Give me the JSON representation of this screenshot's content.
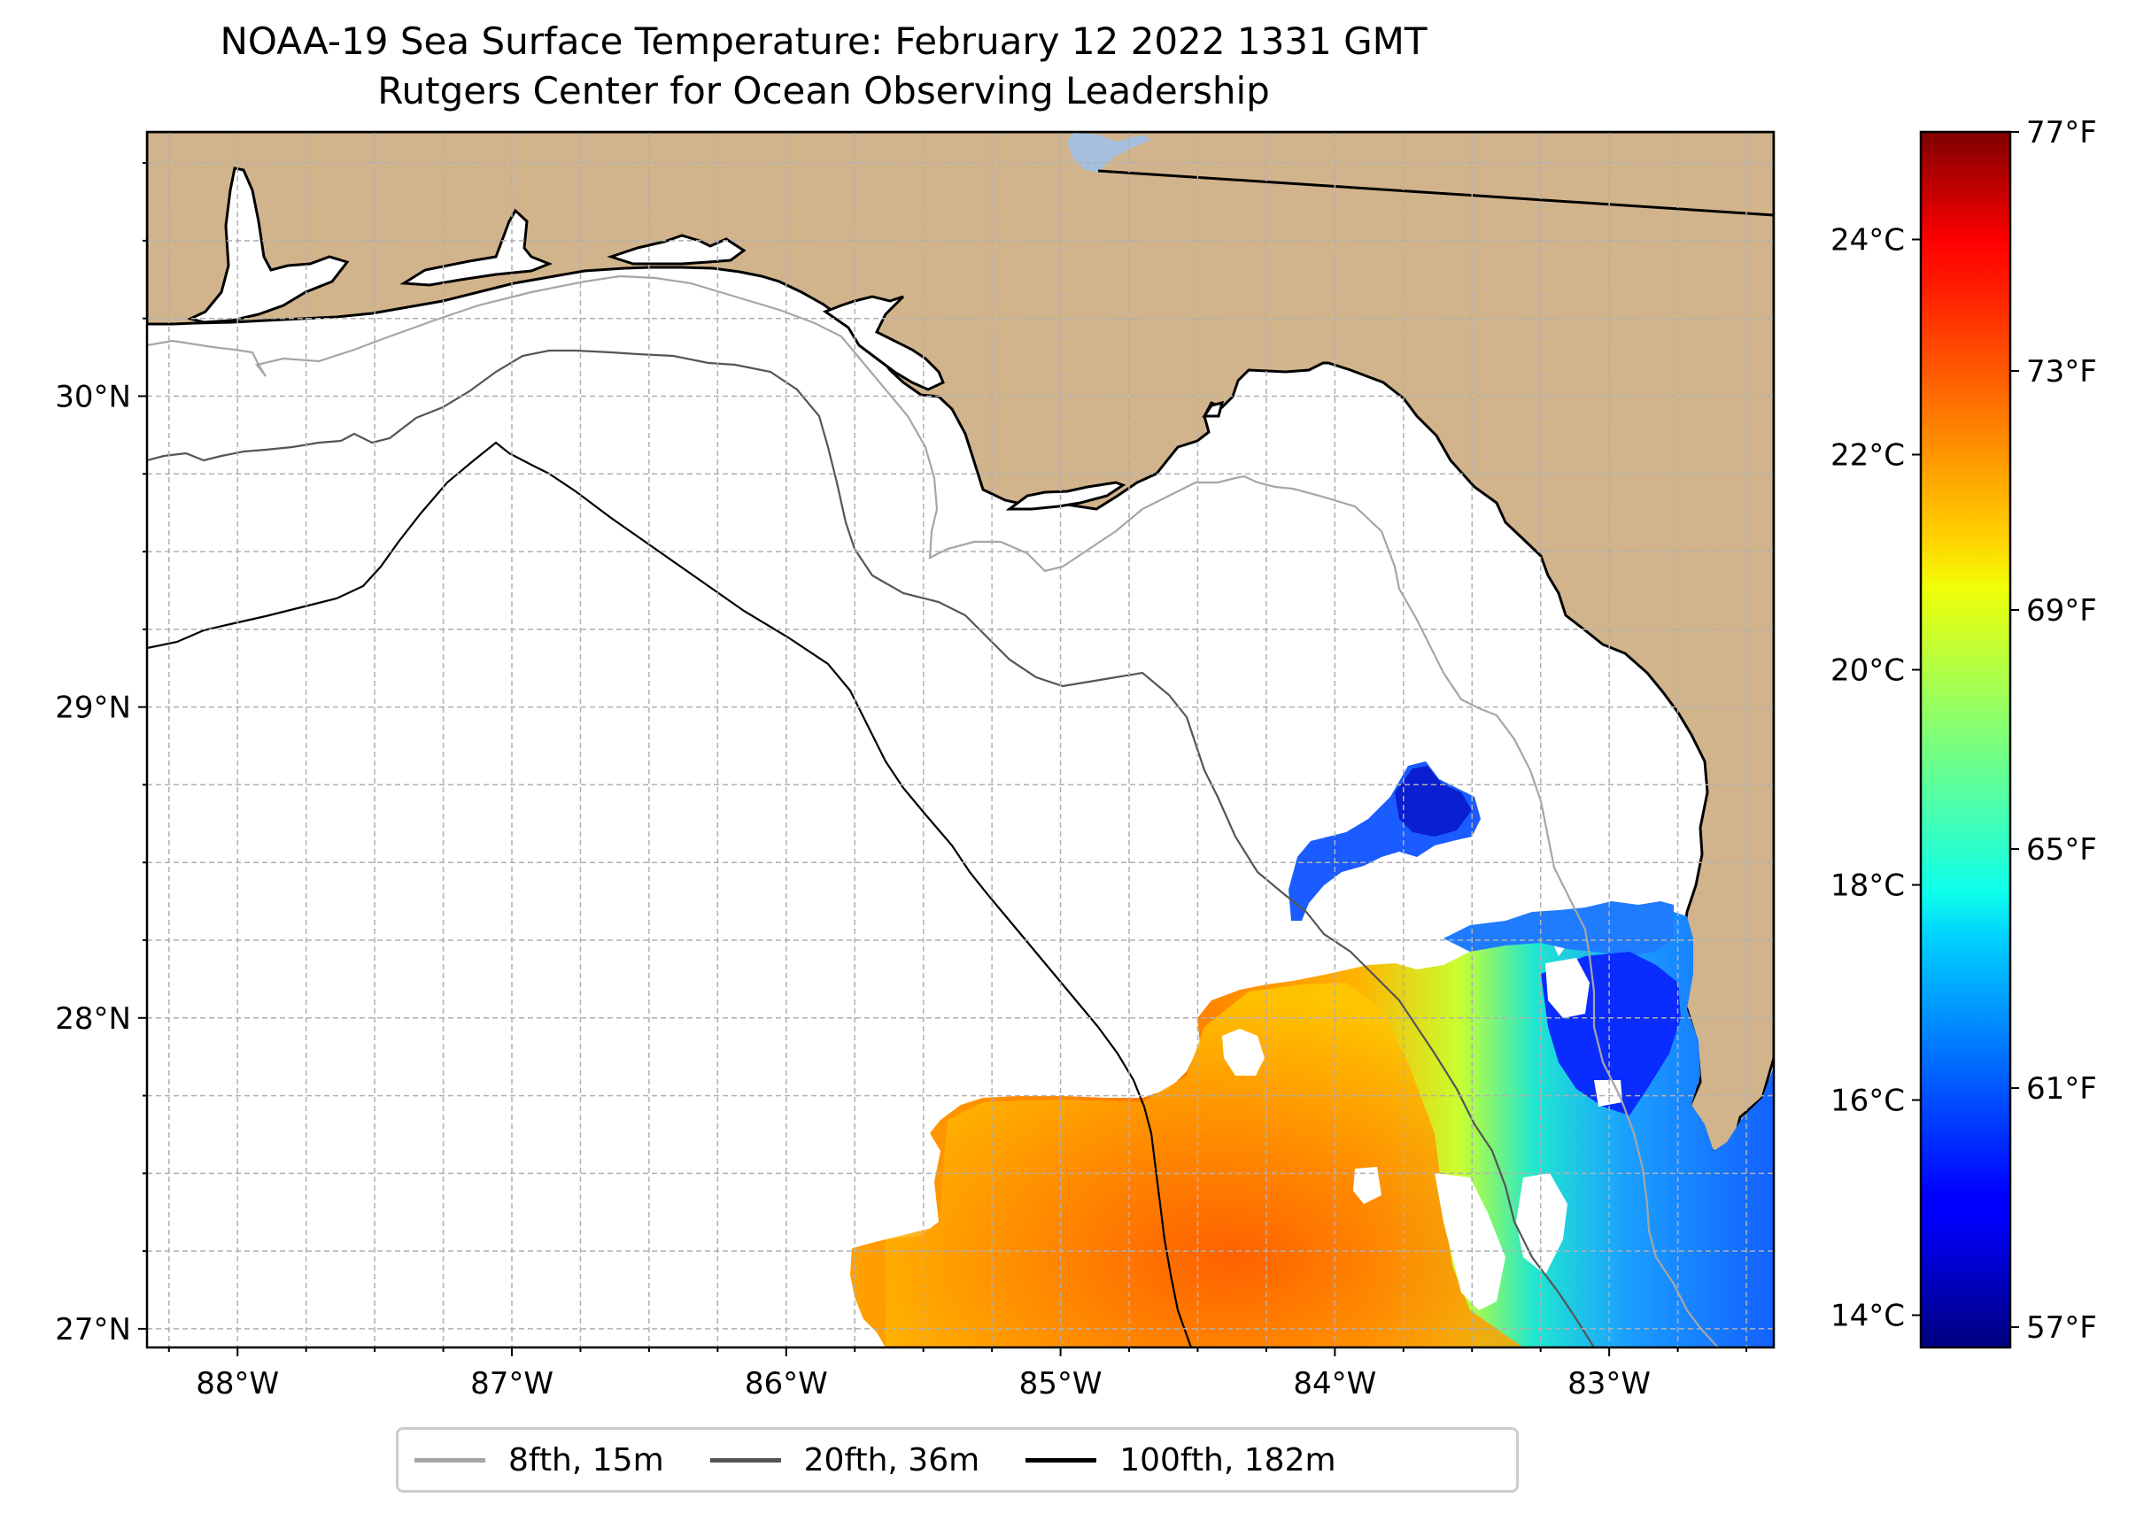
{
  "title": {
    "line1": "NOAA-19 Sea Surface Temperature: February 12 2022 1331 GMT",
    "line2": "Rutgers Center for Ocean Observing Leadership"
  },
  "map": {
    "projection": "PlateCarree",
    "lon_range": [
      -88.33,
      -82.4
    ],
    "lat_range": [
      26.94,
      30.85
    ],
    "grid": true,
    "land_color": "#d2b48c",
    "ocean_color": "#ffffff",
    "lake_color": "#a5bfdd",
    "x_ticks": [
      {
        "value": -88,
        "label": "88°W"
      },
      {
        "value": -87,
        "label": "87°W"
      },
      {
        "value": -86,
        "label": "86°W"
      },
      {
        "value": -85,
        "label": "85°W"
      },
      {
        "value": -84,
        "label": "84°W"
      },
      {
        "value": -83,
        "label": "83°W"
      }
    ],
    "y_ticks": [
      {
        "value": 27,
        "label": "27°N"
      },
      {
        "value": 28,
        "label": "28°N"
      },
      {
        "value": 29,
        "label": "29°N"
      },
      {
        "value": 30,
        "label": "30°N"
      }
    ]
  },
  "colorbar": {
    "colormap": "jet",
    "range_c": [
      13.7,
      25.0
    ],
    "celsius_ticks": [
      {
        "value": 14,
        "label": "14°C"
      },
      {
        "value": 16,
        "label": "16°C"
      },
      {
        "value": 18,
        "label": "18°C"
      },
      {
        "value": 20,
        "label": "20°C"
      },
      {
        "value": 22,
        "label": "22°C"
      },
      {
        "value": 24,
        "label": "24°C"
      }
    ],
    "fahrenheit_ticks": [
      {
        "value": 57,
        "label": "57°F"
      },
      {
        "value": 61,
        "label": "61°F"
      },
      {
        "value": 65,
        "label": "65°F"
      },
      {
        "value": 69,
        "label": "69°F"
      },
      {
        "value": 73,
        "label": "73°F"
      },
      {
        "value": 77,
        "label": "77°F"
      }
    ]
  },
  "legend": {
    "items": [
      {
        "label": "8fth, 15m",
        "color": "#a6a6a6"
      },
      {
        "label": "20fth, 36m",
        "color": "#555555"
      },
      {
        "label": "100fth, 182m",
        "color": "#000000"
      }
    ]
  }
}
